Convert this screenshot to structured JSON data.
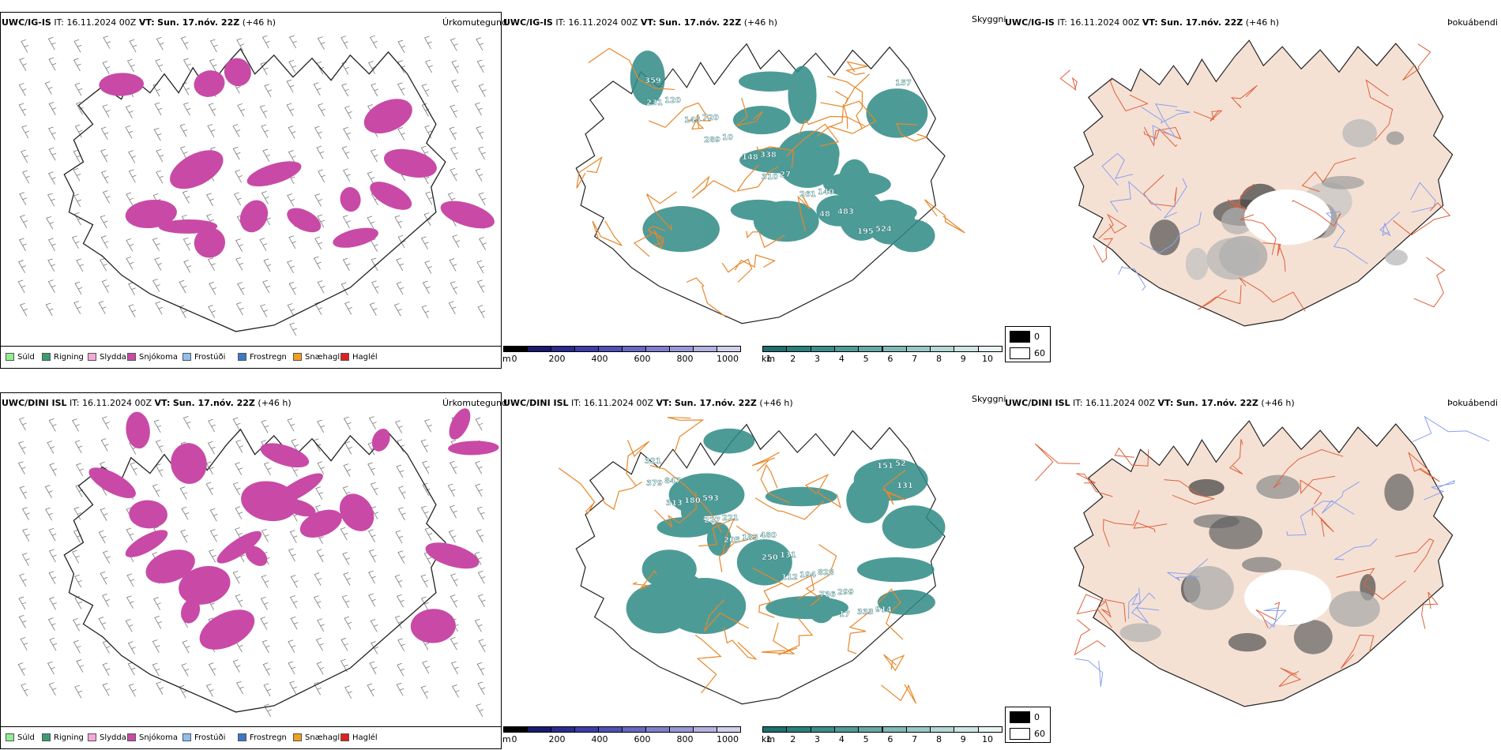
{
  "rows": [
    {
      "model": "UWC/IG-IS",
      "it_label": "IT:",
      "it_value": "16.11.2024 00Z",
      "vt_label": "VT:",
      "vt_value": "Sun. 17.nóv. 22Z",
      "lead": "(+46 h)",
      "panel_names": [
        "Úrkomutegund",
        "Skyggni",
        "Þokuábendi"
      ],
      "labels": [
        "359",
        "720",
        "338",
        "140",
        "524",
        "120",
        "10",
        "27",
        "483",
        "157",
        "145",
        "148",
        "261",
        "195",
        "231",
        "289",
        "310",
        "48"
      ]
    },
    {
      "model": "UWC/DINI ISL",
      "it_label": "IT:",
      "it_value": "16.11.2024 00Z",
      "vt_label": "VT:",
      "vt_value": "Sun. 17.nóv. 22Z",
      "lead": "(+46 h)",
      "panel_names": [
        "Úrkomutegund",
        "Skyggni",
        "Þokuábendi"
      ],
      "labels": [
        "321",
        "593",
        "480",
        "828",
        "914",
        "847",
        "221",
        "131",
        "299",
        "52",
        "180",
        "185",
        "194",
        "333",
        "379",
        "227",
        "250",
        "736",
        "151",
        "313",
        "205",
        "112",
        "17",
        "131"
      ]
    }
  ],
  "precip_legend": [
    {
      "label": "Súld",
      "color": "#90ee90"
    },
    {
      "label": "Rigning",
      "color": "#3a9d6e"
    },
    {
      "label": "Slydda",
      "color": "#f5a9d8"
    },
    {
      "label": "Snjókoma",
      "color": "#c84aa6"
    },
    {
      "label": "Frostúði",
      "color": "#8fbfef"
    },
    {
      "label": "Frostregn",
      "color": "#3a78c8"
    },
    {
      "label": "Snæhagl",
      "color": "#f0a020"
    },
    {
      "label": "Haglél",
      "color": "#e02020"
    }
  ],
  "ceiling_bar": {
    "unit": "m",
    "ticks": [
      "0",
      "200",
      "400",
      "600",
      "800",
      "1000"
    ],
    "colors": [
      "#000000",
      "#1a1a6e",
      "#2b2b8f",
      "#3d3da8",
      "#5050b5",
      "#6868c2",
      "#7f7fcc",
      "#9898d6",
      "#b3b3e0",
      "#d0d0ec"
    ]
  },
  "vis_bar": {
    "unit": "km",
    "ticks": [
      "1",
      "2",
      "3",
      "4",
      "5",
      "6",
      "7",
      "8",
      "9",
      "10"
    ],
    "colors": [
      "#1f6f6f",
      "#2a7f7c",
      "#3b8d89",
      "#4f9b97",
      "#66aaa6",
      "#7fbab6",
      "#99c9c6",
      "#b3d8d6",
      "#cde7e5",
      "#e8f4f3"
    ]
  },
  "fog_key": {
    "items": [
      {
        "label": "0",
        "color": "#000000"
      },
      {
        "label": "60",
        "color": "#ffffff"
      }
    ]
  },
  "colors": {
    "snow": "#c84aa6",
    "vis": "#2f8a86",
    "ceiling": "#3d3da8",
    "road": "#e8872a",
    "land": "#f5e1d4",
    "river": "#8aa0f0"
  }
}
